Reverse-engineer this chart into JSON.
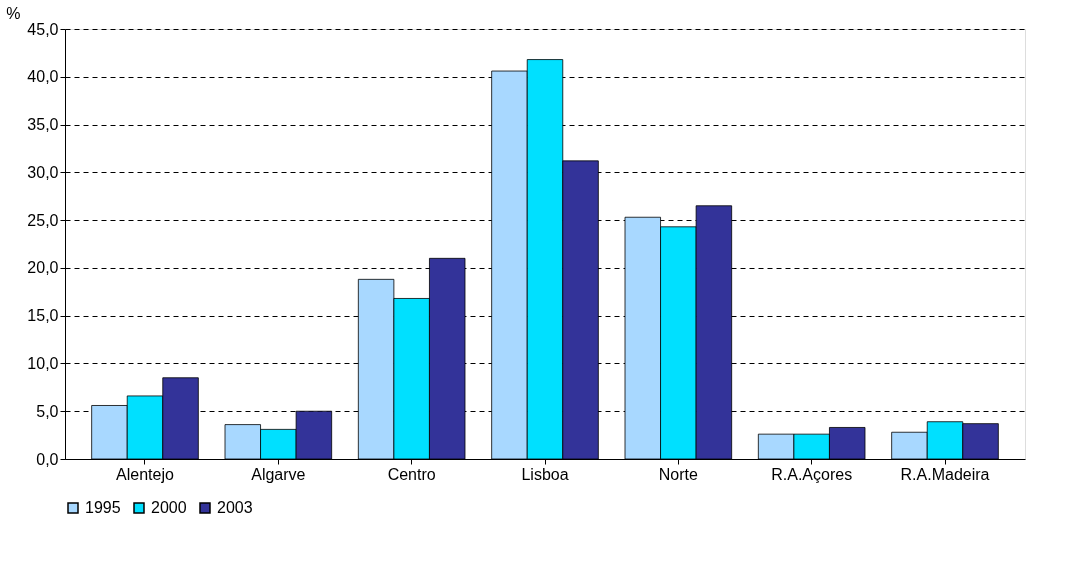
{
  "chart_data": {
    "type": "bar",
    "ylabel": "%",
    "categories": [
      "Alentejo",
      "Algarve",
      "Centro",
      "Lisboa",
      "Norte",
      "R.A.Açores",
      "R.A.Madeira"
    ],
    "series": [
      {
        "name": "1995",
        "color": "#a8d8ff",
        "values": [
          5.6,
          3.6,
          18.8,
          40.6,
          25.3,
          2.6,
          2.8
        ]
      },
      {
        "name": "2000",
        "color": "#00e0ff",
        "values": [
          6.6,
          3.1,
          16.8,
          41.8,
          24.3,
          2.6,
          3.9
        ]
      },
      {
        "name": "2003",
        "color": "#333399",
        "values": [
          8.5,
          5.0,
          21.0,
          31.2,
          26.5,
          3.3,
          3.7
        ]
      }
    ],
    "ylim": [
      0,
      45
    ],
    "yticks": [
      {
        "value": 0,
        "label": "0,0"
      },
      {
        "value": 5,
        "label": "5,0"
      },
      {
        "value": 10,
        "label": "10,0"
      },
      {
        "value": 15,
        "label": "15,0"
      },
      {
        "value": 20,
        "label": "20,0"
      },
      {
        "value": 25,
        "label": "25,0"
      },
      {
        "value": 30,
        "label": "30,0"
      },
      {
        "value": 35,
        "label": "35,0"
      },
      {
        "value": 40,
        "label": "40,0"
      },
      {
        "value": 45,
        "label": "45,0"
      }
    ],
    "grid": "y",
    "legend": "bottom"
  }
}
